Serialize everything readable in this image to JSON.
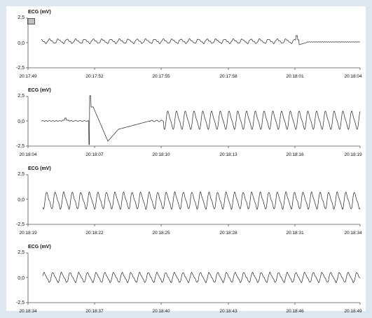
{
  "panels": [
    {
      "ylabel": "ECG (mV)",
      "yticks": [
        "2,5",
        "0,0",
        "-2,5"
      ],
      "xticks": [
        "20:17:49",
        "20:17:52",
        "20:17:55",
        "20:17:58",
        "20:18:01",
        "20:18:04"
      ],
      "marker_icon": "marker-box-icon"
    },
    {
      "ylabel": "ECG (mV)",
      "yticks": [
        "2,5",
        "0,0",
        "-2,5"
      ],
      "xticks": [
        "20:18:04",
        "20:18:07",
        "20:18:10",
        "20:18:13",
        "20:18:16",
        "20:18:19"
      ]
    },
    {
      "ylabel": "ECG (mV)",
      "yticks": [
        "2,5",
        "0,0",
        "-2,5"
      ],
      "xticks": [
        "20:18:19",
        "20:18:22",
        "20:18:25",
        "20:18:28",
        "20:18:31",
        "20:18:34"
      ]
    },
    {
      "ylabel": "ECG (mV)",
      "yticks": [
        "2,5",
        "0,0",
        "-2,5"
      ],
      "xticks": [
        "20:18:34",
        "20:18:37",
        "20:18:40",
        "20:18:43",
        "20:18:46",
        "20:18:49"
      ]
    }
  ],
  "colors": {
    "background": "#dde7f1",
    "trace": "#222222",
    "axis": "#555555"
  }
}
